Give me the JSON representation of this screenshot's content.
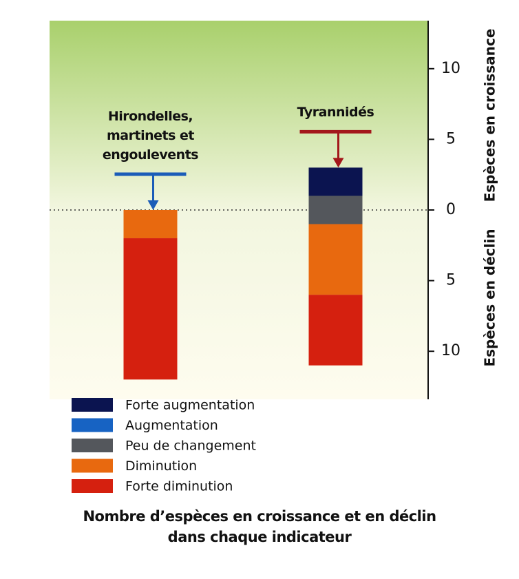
{
  "chart_data": {
    "type": "diverging_stacked_bar",
    "title": "Nombre d’espèces en croissance et en déclin\ndans chaque indicateur",
    "y_label_top": "Espèces en croissance",
    "y_label_bottom": "Espèces en déclin",
    "categories": [
      "Hirondelles,\nmartinets et\nengoulevents",
      "Tyrannidés"
    ],
    "category_colors": [
      "#1a5cb8",
      "#a3171b"
    ],
    "series": [
      {
        "name": "Forte augmentation",
        "color": "#0b1450",
        "values": [
          0,
          2
        ]
      },
      {
        "name": "Augmentation",
        "color": "#1763c3",
        "values": [
          0,
          0
        ]
      },
      {
        "name": "Peu de changement",
        "color": "#54575c",
        "values": [
          0,
          2
        ]
      },
      {
        "name": "Diminution",
        "color": "#e8690f",
        "values": [
          -2,
          -5
        ]
      },
      {
        "name": "Forte diminution",
        "color": "#d5200f",
        "values": [
          -10,
          -5
        ]
      }
    ],
    "ylim": [
      -13.4,
      13.4
    ],
    "yticks": [
      {
        "value": -10,
        "label": "10"
      },
      {
        "value": -5,
        "label": "5"
      },
      0,
      5,
      10
    ]
  }
}
